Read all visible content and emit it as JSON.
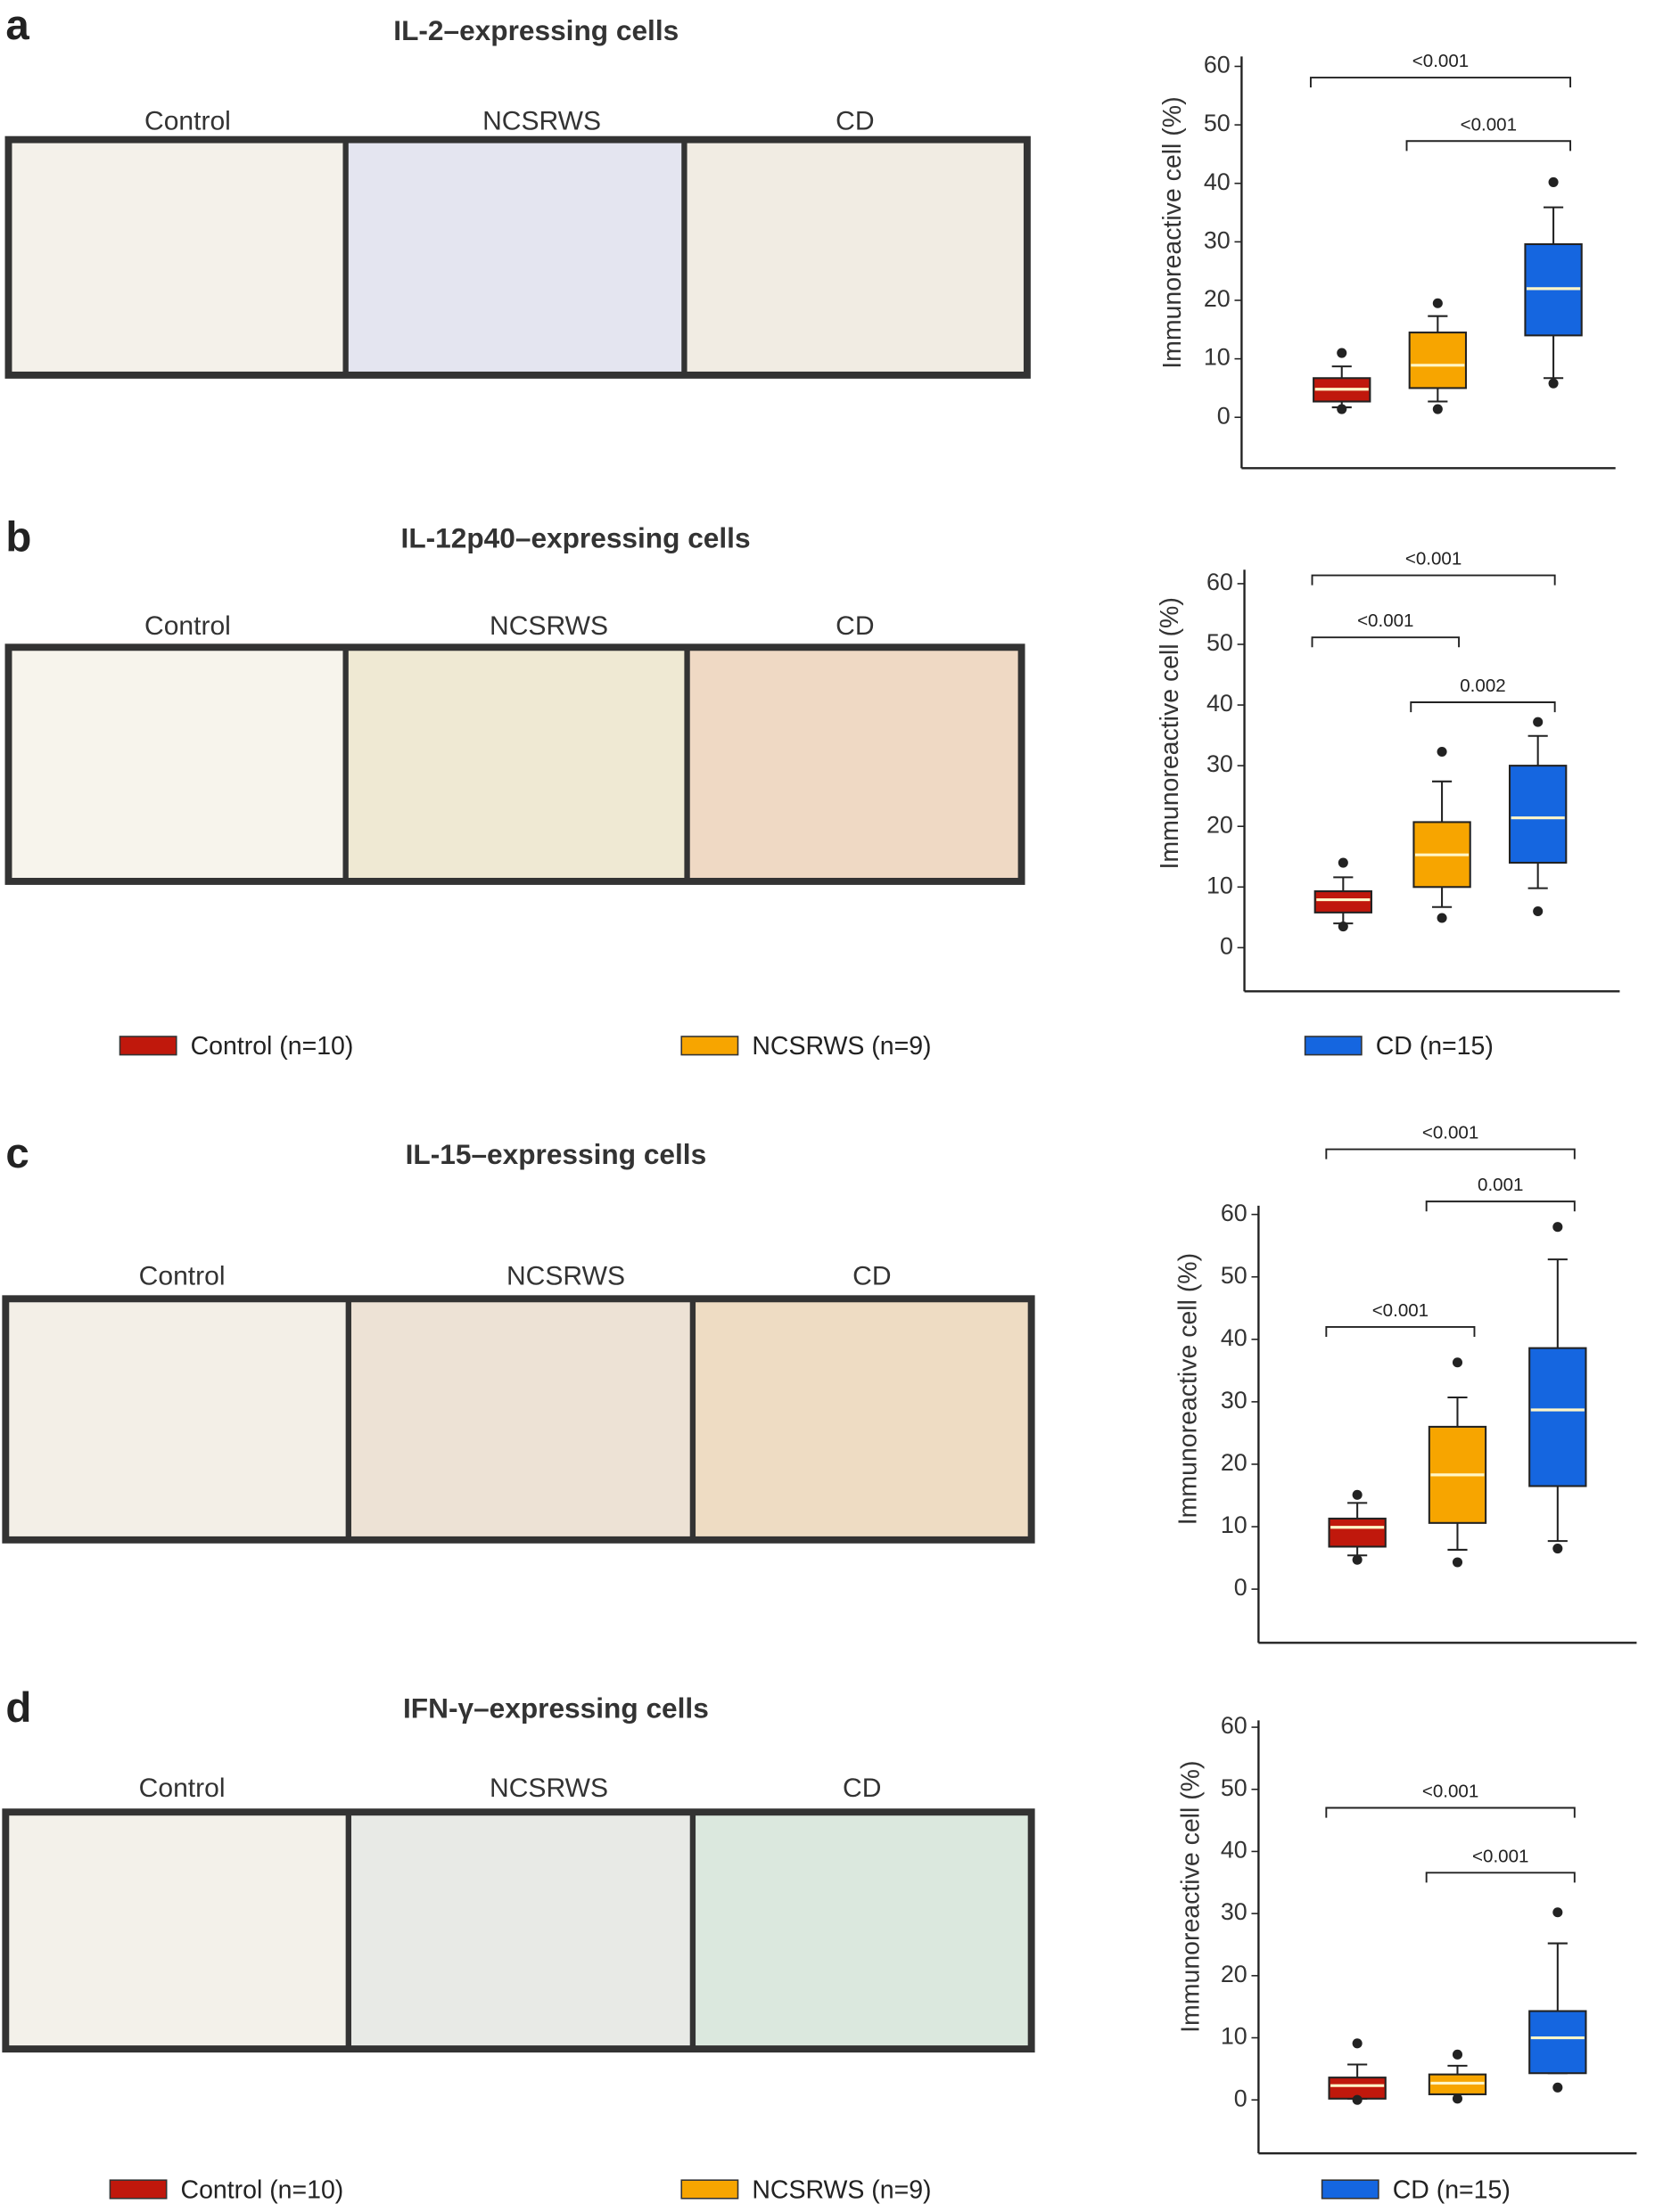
{
  "panels": [
    {
      "letter": "a",
      "title": "IL-2–expressing cells",
      "image_labels": [
        "Control",
        "NCSRWS",
        "CD"
      ]
    },
    {
      "letter": "b",
      "title": "IL-12p40–expressing cells",
      "image_labels": [
        "Control",
        "NCSRWS",
        "CD"
      ]
    },
    {
      "letter": "c",
      "title": "IL-15–expressing cells",
      "image_labels": [
        "Control",
        "NCSRWS",
        "CD"
      ]
    },
    {
      "letter": "d",
      "title": "IFN-γ–expressing cells",
      "image_labels": [
        "Control",
        "NCSRWS",
        "CD"
      ]
    }
  ],
  "chart_data": [
    {
      "type": "box",
      "ylabel": "Immunoreactive cell (%)",
      "ylim": [
        -8.7,
        61.7
      ],
      "yticks": [
        0,
        10,
        20,
        30,
        40,
        50,
        60
      ],
      "annotations": [
        "<0.001",
        "<0.001"
      ],
      "series": [
        {
          "name": "Control (n=10)",
          "color": "#c0180c",
          "whislo": 1.7,
          "q1": 2.7,
          "med": 4.8,
          "q3": 6.7,
          "whishi": 8.7,
          "fliers": [
            1.4,
            11
          ]
        },
        {
          "name": "NCSRWS (n=9)",
          "color": "#f7a500",
          "whislo": 2.7,
          "q1": 5,
          "med": 8.9,
          "q3": 14.5,
          "whishi": 17.3,
          "fliers": [
            1.4,
            19.5
          ]
        },
        {
          "name": "CD (n=15)",
          "color": "#1566e0",
          "whislo": 6.7,
          "q1": 14,
          "med": 22,
          "q3": 29.6,
          "whishi": 35.9,
          "fliers": [
            5.8,
            40.2
          ]
        }
      ]
    },
    {
      "type": "box",
      "ylabel": "Immunoreactive cell (%)",
      "ylim": [
        -7.2,
        62.3
      ],
      "yticks": [
        0,
        10,
        20,
        30,
        40,
        50,
        60
      ],
      "annotations": [
        "<0.001",
        "<0.001",
        "0.002"
      ],
      "series": [
        {
          "name": "Control (n=10)",
          "color": "#c0180c",
          "whislo": 4,
          "q1": 5.8,
          "med": 7.9,
          "q3": 9.3,
          "whishi": 11.6,
          "fliers": [
            3.5,
            14
          ]
        },
        {
          "name": "NCSRWS (n=9)",
          "color": "#f7a500",
          "whislo": 6.7,
          "q1": 10,
          "med": 15.3,
          "q3": 20.7,
          "whishi": 27.4,
          "fliers": [
            4.9,
            32.3
          ]
        },
        {
          "name": "CD (n=15)",
          "color": "#1566e0",
          "whislo": 9.8,
          "q1": 14,
          "med": 21.4,
          "q3": 30,
          "whishi": 34.9,
          "fliers": [
            6,
            37.2
          ]
        }
      ]
    },
    {
      "type": "box",
      "ylabel": "Immunoreactive cell (%)",
      "ylim": [
        -8.6,
        61.4
      ],
      "yticks": [
        0,
        10,
        20,
        30,
        40,
        50,
        60
      ],
      "annotations": [
        "<0.001",
        "0.001",
        "<0.001"
      ],
      "series": [
        {
          "name": "Control (n=10)",
          "color": "#c0180c",
          "whislo": 5.4,
          "q1": 6.8,
          "med": 9.9,
          "q3": 11.3,
          "whishi": 13.8,
          "fliers": [
            4.7,
            15.1
          ]
        },
        {
          "name": "NCSRWS (n=9)",
          "color": "#f7a500",
          "whislo": 6.3,
          "q1": 10.6,
          "med": 18.3,
          "q3": 26,
          "whishi": 30.7,
          "fliers": [
            4.3,
            36.3
          ]
        },
        {
          "name": "CD (n=15)",
          "color": "#1566e0",
          "whislo": 7.7,
          "q1": 16.5,
          "med": 28.7,
          "q3": 38.6,
          "whishi": 52.8,
          "fliers": [
            6.5,
            58
          ]
        }
      ]
    },
    {
      "type": "box",
      "ylabel": "Immunoreactive cell (%)",
      "ylim": [
        -8.6,
        61.1
      ],
      "yticks": [
        0,
        10,
        20,
        30,
        40,
        50,
        60
      ],
      "annotations": [
        "<0.001",
        "<0.001"
      ],
      "series": [
        {
          "name": "Control (n=10)",
          "color": "#c0180c",
          "whislo": 0.2,
          "q1": 0.2,
          "med": 2.3,
          "q3": 3.6,
          "whishi": 5.7,
          "fliers": [
            0,
            9.1
          ]
        },
        {
          "name": "NCSRWS (n=9)",
          "color": "#f7a500",
          "whislo": 0.9,
          "q1": 0.9,
          "med": 2.7,
          "q3": 4.1,
          "whishi": 5.5,
          "fliers": [
            0.2,
            7.3
          ]
        },
        {
          "name": "CD (n=15)",
          "color": "#1566e0",
          "whislo": 4.3,
          "q1": 4.3,
          "med": 10,
          "q3": 14.3,
          "whishi": 25.2,
          "fliers": [
            2,
            30.2
          ]
        }
      ]
    }
  ]
}
